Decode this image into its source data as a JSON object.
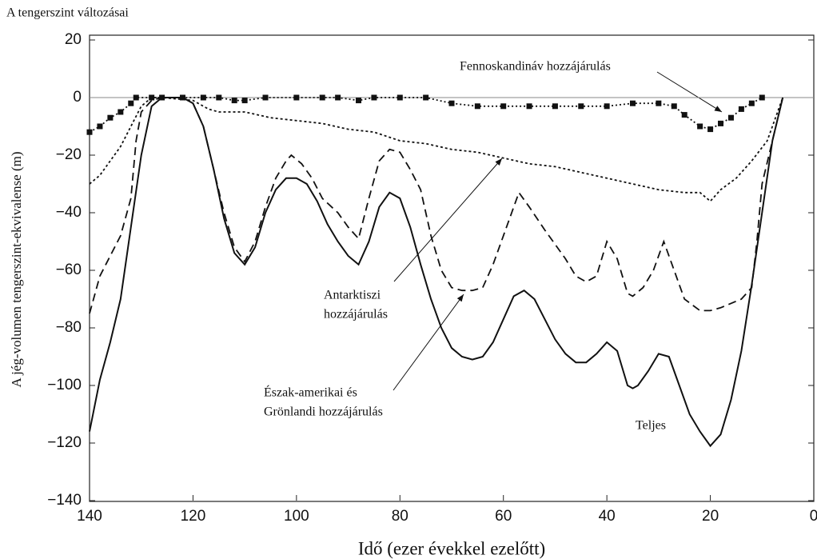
{
  "chart_data": {
    "type": "line",
    "title": "A tengerszint változásai",
    "x_label": "Idő (ezer évekkel ezelőtt)",
    "y_label": "A jég-volumen tengerszint-ekvivalense (m)",
    "xlim": [
      140,
      0
    ],
    "ylim": [
      -140,
      20
    ],
    "xticks": [
      140,
      120,
      100,
      80,
      60,
      40,
      20,
      0
    ],
    "yticks": [
      20,
      0,
      {
        "value": -20,
        "label": "−20"
      },
      {
        "value": -40,
        "label": "−40"
      },
      {
        "value": -60,
        "label": "−60"
      },
      {
        "value": -80,
        "label": "−80"
      },
      {
        "value": -100,
        "label": "−100"
      },
      {
        "value": -120,
        "label": "−120"
      },
      {
        "value": -140,
        "label": "−140"
      }
    ],
    "hline": 0,
    "series": [
      {
        "style": "solid",
        "color": "#111",
        "x": [
          140,
          138,
          136,
          134,
          132,
          130,
          128,
          126,
          124,
          122,
          120,
          118,
          116,
          114,
          112,
          110,
          108,
          106,
          104,
          102,
          100,
          98,
          96,
          94,
          92,
          90,
          88,
          86,
          84,
          82,
          80,
          78,
          76,
          74,
          72,
          70,
          68,
          66,
          64,
          62,
          60,
          58,
          56,
          54,
          52,
          50,
          48,
          46,
          44,
          42,
          40,
          38,
          36,
          35,
          34,
          32,
          30,
          28,
          26,
          24,
          22,
          20,
          18,
          16,
          14,
          12,
          10,
          8,
          6
        ],
        "values": [
          -116,
          -98,
          -85,
          -70,
          -45,
          -20,
          -3,
          0,
          0,
          0,
          -2,
          -10,
          -25,
          -42,
          -54,
          -58,
          -52,
          -40,
          -32,
          -28,
          -28,
          -30,
          -36,
          -44,
          -50,
          -55,
          -58,
          -50,
          -38,
          -33,
          -35,
          -45,
          -58,
          -70,
          -80,
          -87,
          -90,
          -91,
          -90,
          -85,
          -77,
          -69,
          -67,
          -70,
          -77,
          -84,
          -89,
          -92,
          -92,
          -89,
          -85,
          -88,
          -100,
          -101,
          -100,
          -95,
          -89,
          -90,
          -100,
          -110,
          -116,
          -121,
          -117,
          -105,
          -88,
          -65,
          -40,
          -15,
          0
        ]
      },
      {
        "style": "dashed",
        "color": "#111",
        "x": [
          140,
          138,
          136,
          134,
          132,
          131,
          130,
          128,
          126,
          122,
          120,
          118,
          116,
          114,
          112,
          110,
          108,
          106,
          104,
          102,
          101,
          99,
          97,
          95,
          92,
          90,
          88,
          86,
          84,
          82,
          80,
          78,
          76,
          74,
          72,
          70,
          68,
          66,
          64,
          62,
          60,
          58,
          57,
          55,
          52,
          48,
          46,
          44,
          42,
          40,
          38,
          36,
          35,
          33,
          31,
          29,
          27,
          25,
          22,
          20,
          18,
          14,
          12,
          11,
          10,
          8,
          6
        ],
        "values": [
          -75,
          -62,
          -55,
          -48,
          -35,
          -15,
          -5,
          -1,
          0,
          0,
          -2,
          -10,
          -25,
          -40,
          -52,
          -57,
          -50,
          -38,
          -28,
          -22,
          -20,
          -23,
          -28,
          -35,
          -40,
          -45,
          -49,
          -35,
          -22,
          -18,
          -19,
          -25,
          -32,
          -48,
          -60,
          -66,
          -67,
          -67,
          -66,
          -58,
          -48,
          -38,
          -33,
          -38,
          -46,
          -56,
          -62,
          -64,
          -62,
          -50,
          -56,
          -68,
          -69,
          -66,
          -60,
          -50,
          -60,
          -70,
          -74,
          -74,
          -73,
          -70,
          -66,
          -50,
          -30,
          -15,
          0
        ]
      },
      {
        "style": "dotted",
        "color": "#111",
        "x": [
          140,
          138,
          136,
          134,
          132,
          130,
          128,
          126,
          120,
          117,
          115,
          110,
          105,
          100,
          95,
          90,
          85,
          80,
          75,
          70,
          65,
          60,
          55,
          50,
          45,
          40,
          35,
          30,
          25,
          22,
          20,
          18,
          15,
          12,
          9,
          7,
          6
        ],
        "values": [
          -30,
          -27,
          -22,
          -17,
          -10,
          -3,
          0,
          0,
          -1,
          -4,
          -5,
          -5,
          -7,
          -8,
          -9,
          -11,
          -12,
          -15,
          -16,
          -18,
          -19,
          -21,
          -23,
          -24,
          -26,
          -28,
          -30,
          -32,
          -33,
          -33,
          -36,
          -32,
          -28,
          -22,
          -15,
          -5,
          0
        ]
      },
      {
        "style": "dotted-markers",
        "color": "#111",
        "x": [
          140,
          138,
          136,
          134,
          132,
          131,
          128,
          126,
          122,
          118,
          115,
          112,
          110,
          106,
          100,
          95,
          92,
          88,
          85,
          80,
          75,
          70,
          65,
          60,
          55,
          50,
          45,
          40,
          35,
          30,
          27,
          25,
          22,
          20,
          18,
          16,
          14,
          12,
          10
        ],
        "values": [
          -12,
          -10,
          -7,
          -5,
          -2,
          0,
          0,
          0,
          0,
          0,
          0,
          -1,
          -1,
          0,
          0,
          0,
          0,
          -1,
          0,
          0,
          0,
          -2,
          -3,
          -3,
          -3,
          -3,
          -3,
          -3,
          -2,
          -2,
          -3,
          -6,
          -10,
          -11,
          -9,
          -7,
          -4,
          -2,
          0
        ]
      }
    ],
    "annotations": [
      {
        "lines": [
          "Fennoskandináv hozzájárulás"
        ]
      },
      {
        "lines": [
          "Antarktiszi",
          "hozzájárulás"
        ]
      },
      {
        "lines": [
          "Észak-amerikai és",
          "Grönlandi hozzájárulás"
        ]
      },
      {
        "lines": [
          "Teljes"
        ]
      }
    ]
  }
}
